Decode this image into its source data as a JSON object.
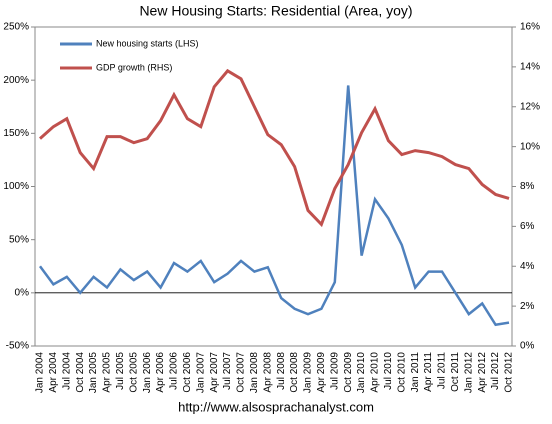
{
  "chart_data": {
    "type": "line",
    "title": "New Housing Starts: Residential (Area, yoy)",
    "footer": "http://www.alsosprachanalyst.com",
    "categories": [
      "Jan 2004",
      "Apr 2004",
      "Jul 2004",
      "Oct 2004",
      "Jan 2005",
      "Apr 2005",
      "Jul 2005",
      "Oct 2005",
      "Jan 2006",
      "Apr 2006",
      "Jul 2006",
      "Oct 2006",
      "Jan 2007",
      "Apr 2007",
      "Jul 2007",
      "Oct 2007",
      "Jan 2008",
      "Apr 2008",
      "Jul 2008",
      "Oct 2008",
      "Jan 2009",
      "Apr 2009",
      "Jul 2009",
      "Oct 2009",
      "Jan 2010",
      "Apr 2010",
      "Jul 2010",
      "Oct 2010",
      "Jan 2011",
      "Apr 2011",
      "Jul 2011",
      "Oct 2011",
      "Jan 2012",
      "Apr 2012",
      "Jul 2012",
      "Oct 2012"
    ],
    "series": [
      {
        "name": "New housing starts (LHS)",
        "color": "#4f81bd",
        "axis": "y",
        "values": [
          25,
          8,
          15,
          0,
          15,
          5,
          22,
          12,
          20,
          5,
          28,
          20,
          30,
          10,
          18,
          30,
          20,
          24,
          -5,
          -15,
          -20,
          -15,
          10,
          195,
          35,
          88,
          70,
          45,
          5,
          20,
          20,
          0,
          -20,
          -10,
          -30,
          -28
        ]
      },
      {
        "name": "GDP growth (RHS)",
        "color": "#c0504d",
        "axis": "y2",
        "values": [
          10.4,
          11.0,
          11.4,
          9.7,
          8.9,
          10.5,
          10.5,
          10.2,
          10.4,
          11.3,
          12.6,
          11.4,
          11.0,
          13.0,
          13.8,
          13.4,
          12.0,
          10.6,
          10.1,
          9.0,
          6.8,
          6.1,
          7.9,
          9.1,
          10.7,
          11.9,
          10.3,
          9.6,
          9.8,
          9.7,
          9.5,
          9.1,
          8.9,
          8.1,
          7.6,
          7.4
        ]
      }
    ],
    "ylim": [
      -50,
      250
    ],
    "yticks": [
      {
        "value": -50,
        "label": "-50%"
      },
      {
        "value": 0,
        "label": "0%"
      },
      {
        "value": 50,
        "label": "50%"
      },
      {
        "value": 100,
        "label": "100%"
      },
      {
        "value": 150,
        "label": "150%"
      },
      {
        "value": 200,
        "label": "200%"
      },
      {
        "value": 250,
        "label": "250%"
      }
    ],
    "y2lim": [
      0,
      16
    ],
    "y2ticks": [
      {
        "value": 0,
        "label": "0%"
      },
      {
        "value": 2,
        "label": "2%"
      },
      {
        "value": 4,
        "label": "4%"
      },
      {
        "value": 6,
        "label": "6%"
      },
      {
        "value": 8,
        "label": "8%"
      },
      {
        "value": 10,
        "label": "10%"
      },
      {
        "value": 12,
        "label": "12%"
      },
      {
        "value": 14,
        "label": "14%"
      },
      {
        "value": 16,
        "label": "16%"
      }
    ],
    "legend": "upper left"
  }
}
